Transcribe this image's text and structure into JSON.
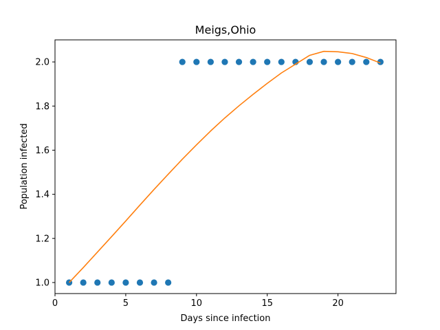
{
  "chart_data": {
    "type": "scatter",
    "title": "Meigs,Ohio",
    "xlabel": "Days since infection",
    "ylabel": "Population infected",
    "xlim": [
      0.0,
      24.1
    ],
    "ylim": [
      0.95,
      2.1
    ],
    "xticks": [
      0,
      5,
      10,
      15,
      20
    ],
    "xtick_labels": [
      "0",
      "5",
      "10",
      "15",
      "20"
    ],
    "yticks": [
      1.0,
      1.2,
      1.4,
      1.6,
      1.8,
      2.0
    ],
    "ytick_labels": [
      "1.0",
      "1.2",
      "1.4",
      "1.6",
      "1.8",
      "2.0"
    ],
    "grid": false,
    "series": [
      {
        "kind": "scatter",
        "color": "#1f77b4",
        "x": [
          1,
          2,
          3,
          4,
          5,
          6,
          7,
          8,
          9,
          10,
          11,
          12,
          13,
          14,
          15,
          16,
          17,
          18,
          19,
          20,
          21,
          22,
          23
        ],
        "y": [
          1,
          1,
          1,
          1,
          1,
          1,
          1,
          1,
          2,
          2,
          2,
          2,
          2,
          2,
          2,
          2,
          2,
          2,
          2,
          2,
          2,
          2,
          2
        ]
      },
      {
        "kind": "line",
        "color": "#ff7f0e",
        "x": [
          1,
          2,
          3,
          4,
          5,
          6,
          7,
          8,
          9,
          10,
          11,
          12,
          13,
          14,
          15,
          16,
          17,
          18,
          19,
          20,
          21,
          22,
          23
        ],
        "y": [
          1.0,
          1.068,
          1.138,
          1.208,
          1.279,
          1.351,
          1.422,
          1.491,
          1.559,
          1.624,
          1.687,
          1.746,
          1.801,
          1.853,
          1.903,
          1.95,
          1.99,
          2.03,
          2.048,
          2.046,
          2.038,
          2.02,
          1.995
        ]
      }
    ]
  }
}
